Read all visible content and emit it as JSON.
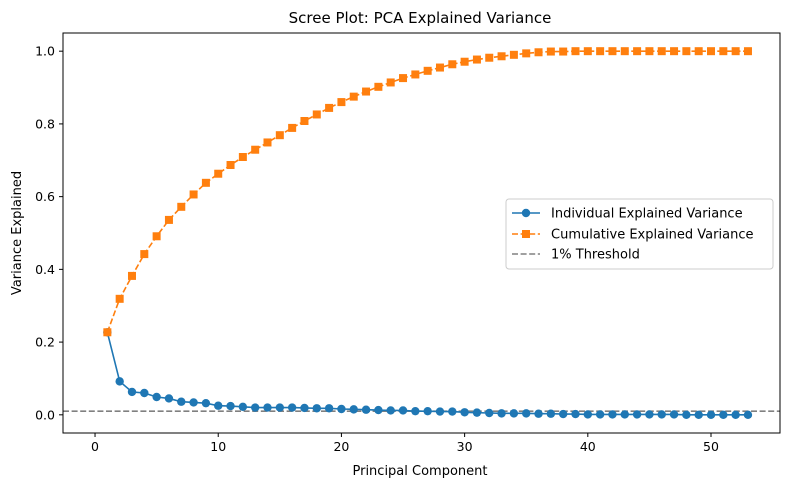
{
  "chart_data": {
    "type": "line",
    "title": "Scree Plot: PCA Explained Variance",
    "xlabel": "Principal Component",
    "ylabel": "Variance Explained",
    "xlim": [
      -2.6,
      55.6
    ],
    "ylim": [
      -0.05,
      1.05
    ],
    "xticks": [
      0,
      10,
      20,
      30,
      40,
      50
    ],
    "yticks": [
      0.0,
      0.2,
      0.4,
      0.6,
      0.8,
      1.0
    ],
    "ytick_labels": [
      "0.0",
      "0.2",
      "0.4",
      "0.6",
      "0.8",
      "1.0"
    ],
    "grid": false,
    "legend_position": "center-right",
    "x": [
      1,
      2,
      3,
      4,
      5,
      6,
      7,
      8,
      9,
      10,
      11,
      12,
      13,
      14,
      15,
      16,
      17,
      18,
      19,
      20,
      21,
      22,
      23,
      24,
      25,
      26,
      27,
      28,
      29,
      30,
      31,
      32,
      33,
      34,
      35,
      36,
      37,
      38,
      39,
      40,
      41,
      42,
      43,
      44,
      45,
      46,
      47,
      48,
      49,
      50,
      51,
      52,
      53
    ],
    "series": [
      {
        "name": "Individual Explained Variance",
        "marker": "circle",
        "linestyle": "solid",
        "color": "#1f77b4",
        "values": [
          0.227,
          0.092,
          0.063,
          0.06,
          0.049,
          0.045,
          0.036,
          0.034,
          0.032,
          0.025,
          0.024,
          0.022,
          0.02,
          0.02,
          0.02,
          0.02,
          0.019,
          0.018,
          0.018,
          0.016,
          0.015,
          0.014,
          0.013,
          0.012,
          0.012,
          0.01,
          0.01,
          0.009,
          0.009,
          0.007,
          0.006,
          0.005,
          0.004,
          0.004,
          0.004,
          0.003,
          0.003,
          0.002,
          0.002,
          0.001,
          0.001,
          0.001,
          0.001,
          0.001,
          0.001,
          0.001,
          0.001,
          0.0,
          0.0,
          0.0,
          0.0,
          0.0,
          0.0
        ]
      },
      {
        "name": "Cumulative Explained Variance",
        "marker": "square",
        "linestyle": "dashed",
        "color": "#ff7f0e",
        "values": [
          0.227,
          0.319,
          0.382,
          0.442,
          0.491,
          0.536,
          0.572,
          0.606,
          0.638,
          0.663,
          0.687,
          0.709,
          0.729,
          0.749,
          0.769,
          0.789,
          0.808,
          0.826,
          0.844,
          0.86,
          0.875,
          0.889,
          0.902,
          0.914,
          0.926,
          0.936,
          0.946,
          0.955,
          0.964,
          0.971,
          0.977,
          0.982,
          0.986,
          0.99,
          0.994,
          0.997,
          0.999,
          0.999,
          1.0,
          1.0,
          1.0,
          1.0,
          1.0,
          1.0,
          1.0,
          1.0,
          1.0,
          1.0,
          1.0,
          1.0,
          1.0,
          1.0,
          1.0
        ]
      }
    ],
    "reference_lines": [
      {
        "name": "1% Threshold",
        "y": 0.01,
        "linestyle": "dashed",
        "color": "#808080"
      }
    ]
  }
}
